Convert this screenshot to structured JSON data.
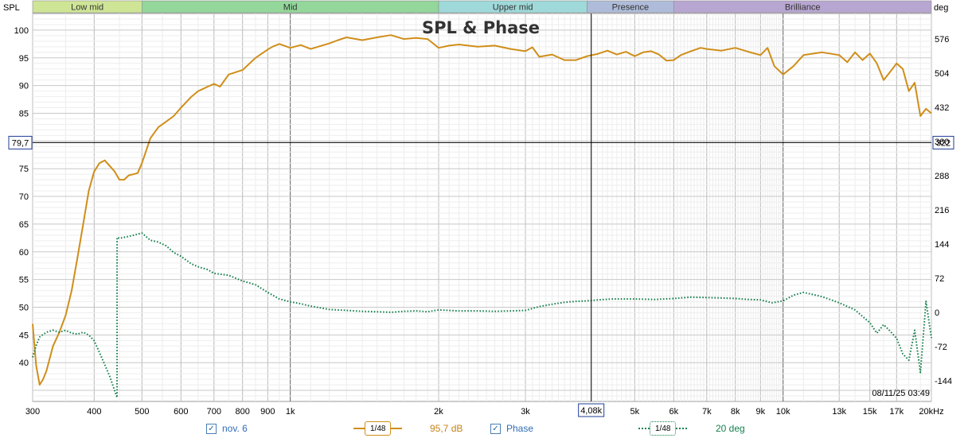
{
  "title": "SPL & Phase",
  "left_axis_label": "SPL",
  "right_axis_label": "deg",
  "x_unit": "Hz",
  "timestamp": "08/11/25 03:49",
  "cursor": {
    "y_readout": "79,7",
    "x_readout": "4,08k",
    "right_readout": "322"
  },
  "bands": [
    {
      "label": "Low mid",
      "color": "#cfe596"
    },
    {
      "label": "Mid",
      "color": "#93d79a"
    },
    {
      "label": "Upper mid",
      "color": "#9fd9d9"
    },
    {
      "label": "Presence",
      "color": "#aebbd9"
    },
    {
      "label": "Brilliance",
      "color": "#b8a6d2"
    }
  ],
  "legend": {
    "series1_name": "nov. 6",
    "series1_smoothing": "1/48",
    "series1_value": "95,7 dB",
    "series2_name": "Phase",
    "series2_smoothing": "1/48",
    "series2_value": "20 deg"
  },
  "colors": {
    "spl": "#d08e1a",
    "phase": "#17804e",
    "cursor": "#000000",
    "grid": "#d0d0d0"
  },
  "chart_data": {
    "type": "line",
    "title": "SPL & Phase",
    "x_scale": "log",
    "xlim": [
      300,
      20000
    ],
    "ylim_left": [
      33,
      103
    ],
    "ylim_right": [
      -188,
      630
    ],
    "band_edges_hz": [
      300,
      500,
      2000,
      4000,
      6000,
      20000
    ],
    "x_ticks": [
      {
        "v": 300,
        "label": "300"
      },
      {
        "v": 400,
        "label": "400"
      },
      {
        "v": 500,
        "label": "500"
      },
      {
        "v": 600,
        "label": "600"
      },
      {
        "v": 700,
        "label": "700"
      },
      {
        "v": 800,
        "label": "800"
      },
      {
        "v": 900,
        "label": "900"
      },
      {
        "v": 1000,
        "label": "1k"
      },
      {
        "v": 2000,
        "label": "2k"
      },
      {
        "v": 3000,
        "label": "3k"
      },
      {
        "v": 5000,
        "label": "5k"
      },
      {
        "v": 6000,
        "label": "6k"
      },
      {
        "v": 7000,
        "label": "7k"
      },
      {
        "v": 8000,
        "label": "8k"
      },
      {
        "v": 9000,
        "label": "9k"
      },
      {
        "v": 10000,
        "label": "10k"
      },
      {
        "v": 13000,
        "label": "13k"
      },
      {
        "v": 15000,
        "label": "15k"
      },
      {
        "v": 17000,
        "label": "17k"
      },
      {
        "v": 20000,
        "label": "20kHz"
      }
    ],
    "y_ticks_left": [
      "100",
      "95",
      "90",
      "85",
      "75",
      "70",
      "65",
      "60",
      "55",
      "50",
      "45",
      "40"
    ],
    "y_ticks_right": [
      "576",
      "504",
      "432",
      "360",
      "288",
      "216",
      "144",
      "72",
      "0",
      "-72",
      "-144"
    ],
    "cursor_x_hz": 4080,
    "cursor_y_db": 79.7,
    "series": [
      {
        "name": "nov. 6",
        "axis": "left",
        "unit": "dB",
        "x": [
          300,
          305,
          310,
          315,
          320,
          330,
          340,
          350,
          360,
          370,
          380,
          390,
          400,
          410,
          420,
          430,
          440,
          450,
          460,
          470,
          490,
          500,
          520,
          540,
          560,
          580,
          600,
          630,
          650,
          680,
          700,
          720,
          750,
          800,
          850,
          900,
          920,
          950,
          1000,
          1050,
          1100,
          1200,
          1250,
          1300,
          1400,
          1500,
          1600,
          1700,
          1800,
          1900,
          2000,
          2100,
          2200,
          2400,
          2600,
          2800,
          3000,
          3100,
          3200,
          3400,
          3600,
          3800,
          4000,
          4200,
          4400,
          4600,
          4800,
          5000,
          5200,
          5400,
          5600,
          5800,
          6000,
          6200,
          6500,
          6800,
          7000,
          7500,
          8000,
          8500,
          9000,
          9300,
          9600,
          10000,
          10500,
          11000,
          12000,
          13000,
          13500,
          14000,
          14500,
          15000,
          15500,
          16000,
          16500,
          17000,
          17500,
          18000,
          18500,
          19000,
          19500,
          20000
        ],
        "y": [
          47,
          39.5,
          36,
          37,
          38.5,
          43,
          45.5,
          48.5,
          53,
          59,
          65,
          71,
          74.5,
          76,
          76.5,
          75.5,
          74.5,
          73,
          73,
          73.8,
          74.2,
          76,
          80.5,
          82.5,
          83.5,
          84.5,
          86,
          88,
          89,
          89.8,
          90.3,
          89.8,
          92,
          92.8,
          95,
          96.5,
          97,
          97.5,
          96.8,
          97.3,
          96.6,
          97.6,
          98.2,
          98.7,
          98.2,
          98.7,
          99.1,
          98.4,
          98.6,
          98.4,
          96.8,
          97.2,
          97.4,
          97,
          97.2,
          96.6,
          96.2,
          96.9,
          95.2,
          95.6,
          94.6,
          94.6,
          95.3,
          95.7,
          96.3,
          95.6,
          96.1,
          95.3,
          96,
          96.2,
          95.6,
          94.5,
          94.6,
          95.5,
          96.2,
          96.8,
          96.6,
          96.3,
          96.8,
          96.1,
          95.5,
          96.8,
          93.5,
          92,
          93.5,
          95.5,
          96,
          95.5,
          94.2,
          96,
          94.6,
          95.8,
          94,
          91,
          92.5,
          94,
          93,
          89,
          90.5,
          84.5,
          85.8,
          85
        ]
      },
      {
        "name": "Phase",
        "axis": "right",
        "unit": "deg",
        "x": [
          300,
          305,
          310,
          320,
          330,
          340,
          350,
          360,
          370,
          380,
          390,
          400,
          410,
          420,
          430,
          440,
          445,
          445.2,
          450,
          470,
          500,
          520,
          540,
          560,
          580,
          600,
          630,
          650,
          680,
          700,
          750,
          800,
          850,
          900,
          950,
          1000,
          1050,
          1100,
          1200,
          1300,
          1400,
          1500,
          1600,
          1700,
          1800,
          1900,
          2000,
          2200,
          2400,
          2600,
          2800,
          3000,
          3200,
          3400,
          3600,
          3800,
          4000,
          4200,
          4500,
          5000,
          5500,
          6000,
          6500,
          7000,
          7500,
          8000,
          8500,
          9000,
          9500,
          10000,
          10500,
          11000,
          12000,
          13000,
          14000,
          15000,
          15500,
          16000,
          16500,
          17000,
          17500,
          18000,
          18500,
          19000,
          19500,
          20000
        ],
        "y": [
          -95,
          -70,
          -52,
          -42,
          -38,
          -42,
          -38,
          -44,
          -46,
          -42,
          -48,
          -60,
          -85,
          -110,
          -135,
          -165,
          -180,
          158,
          156,
          160,
          167,
          152,
          148,
          140,
          126,
          118,
          102,
          96,
          90,
          82,
          78,
          66,
          58,
          42,
          28,
          22,
          18,
          13,
          6,
          4,
          2,
          1,
          0,
          2,
          3,
          1,
          5,
          3,
          3,
          2,
          3,
          4,
          12,
          17,
          21,
          23,
          24,
          26,
          28,
          28,
          27,
          29,
          32,
          31,
          30,
          29,
          27,
          26,
          20,
          24,
          36,
          42,
          33,
          20,
          5,
          -22,
          -44,
          -26,
          -40,
          -55,
          -88,
          -101,
          -38,
          -127,
          23,
          -54
        ]
      }
    ]
  }
}
